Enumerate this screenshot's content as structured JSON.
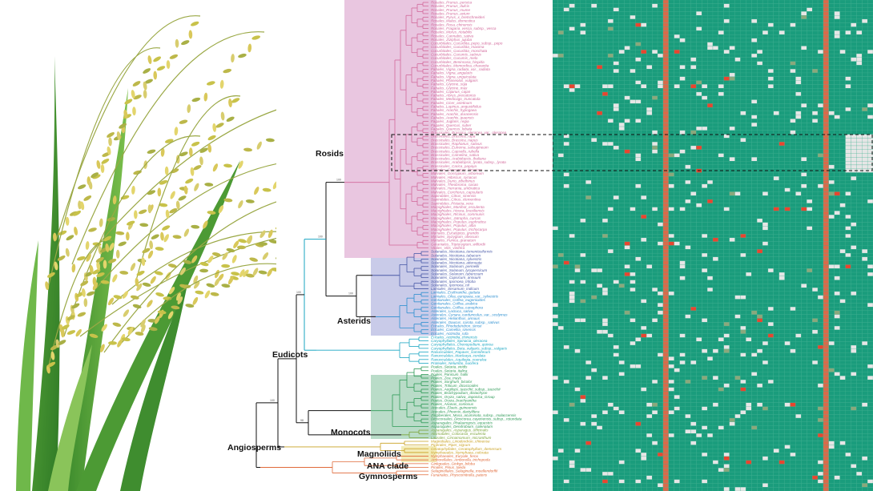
{
  "clades": {
    "rosids": "Rosids",
    "asterids": "Asterids",
    "eudicots": "Eudicots",
    "monocots": "Monocots",
    "magnoliids": "Magnoliids",
    "angiosperms": "Angiosperms",
    "ana": "ANA clade",
    "gymnosperms": "Gymnosperms"
  },
  "colors": {
    "rosid_tips": "#d2699b",
    "rosid_bg": "#e9c6e0",
    "asterid_bg": "#c9cbe9",
    "asterid_tips": "#4a5aa8",
    "lamiid_tips": "#2c8fd0",
    "eudicot_basal": "#1aa6c2",
    "monocot_bg": "#b9dcc8",
    "monocot_tips": "#2e9a57",
    "magnoliid_bg": "#f3ecb8",
    "magnoliid_tips": "#7ba43a",
    "ana_tips": "#c9a020",
    "gymno_tips": "#e06a3a",
    "heat_base": "#1a9c7c",
    "heat_absent": "#e6e6e6",
    "heat_high": "#d96a4a",
    "heat_alert": "#e8452f"
  },
  "bootstrap_values": [
    "100",
    "100",
    "100",
    "100",
    "100",
    "100",
    "98"
  ],
  "species": [
    "Rosales_Prunus_persica",
    "Rosales_Prunus_dulcis",
    "Rosales_Prunus_mume",
    "Rosales_Prunus_avium",
    "Rosales_Pyrus_x_bretschneideri",
    "Rosales_Malus_domestica",
    "Rosales_Rosa_chinensis",
    "Rosales_Fragaria_vesca_subsp._vesca",
    "Rosales_Morus_notabilis",
    "Rosales_Cannabis_sativa",
    "Rosales_Ziziphus_jujuba",
    "Cucurbitales_Cucurbita_pepo_subsp._pepo",
    "Cucurbitales_Cucurbita_maxima",
    "Cucurbitales_Cucurbita_moschata",
    "Cucurbitales_Cucumis_sativus",
    "Cucurbitales_Cucumis_melo",
    "Cucurbitales_Benincasa_hispida",
    "Cucurbitales_Momordica_charantia",
    "Fabales_Vigna_radiata_var._radiata",
    "Fabales_Vigna_angularis",
    "Fabales_Vigna_unguiculata",
    "Fabales_Phaseolus_vulgaris",
    "Fabales_Glycine_soja",
    "Fabales_Glycine_max",
    "Fabales_Cajanus_cajan",
    "Fabales_Abrus_precatorius",
    "Fabales_Medicago_truncatula",
    "Fabales_Cicer_arietinum",
    "Fabales_Lupinus_angustifolius",
    "Fabales_Arachis_hypogaea",
    "Fabales_Arachis_duranensis",
    "Fabales_Arachis_ipaensis",
    "Fagales_Juglans_regia",
    "Fagales_Quercus_suber",
    "Fagales_Quercus_lobata",
    "Brassicales_Brassica_oleracea_var._oleracea",
    "Brassicales_Brassica_rapa",
    "Brassicales_Brassica_napus",
    "Brassicales_Raphanus_sativus",
    "Brassicales_Eutrema_salsugineum",
    "Brassicales_Capsella_rubella",
    "Brassicales_Camelina_sativa",
    "Brassicales_Arabidopsis_thaliana",
    "Brassicales_Arabidopsis_lyrata_subsp._lyrata",
    "Brassicales_Carica_papaya",
    "Malvales_Gossypium_hirsutum",
    "Malvales_Gossypium_arboreum",
    "Malvales_Hibiscus_syriacus",
    "Malvales_Durio_zibethinus",
    "Malvales_Theobroma_cacao",
    "Malvales_Herrania_umbratica",
    "Malvales_Corchorus_capsularis",
    "Sapindales_Citrus_sinensis",
    "Sapindales_Citrus_clementina",
    "Sapindales_Pistacia_vera",
    "Malpighiales_Manihot_esculenta",
    "Malpighiales_Hevea_brasiliensis",
    "Malpighiales_Ricinus_communis",
    "Malpighiales_Jatropha_curcas",
    "Malpighiales_Populus_euphratica",
    "Malpighiales_Populus_alba",
    "Malpighiales_Populus_trichocarpa",
    "Myrtales_Eucalyptus_grandis",
    "Myrtales_Syzygium_oleosum",
    "Myrtales_Punica_granatum",
    "Geraniales_Tripterygium_wilfordii",
    "Vitales_Vitis_vinifera",
    "Solanales_Nicotiana_tomentosiformis",
    "Solanales_Nicotiana_tabacum",
    "Solanales_Nicotiana_sylvestris",
    "Solanales_Nicotiana_attenuata",
    "Solanales_Solanum_pennellii",
    "Solanales_Solanum_lycopersicum",
    "Solanales_Solanum_tuberosum",
    "Solanales_Capsicum_annuum",
    "Solanales_Ipomoea_triloba",
    "Solanales_Ipomoea_nil",
    "Lamiales_Sesamum_indicum",
    "Lamiales_Erythranthe_guttata",
    "Lamiales_Olea_europaea_var._sylvestris",
    "Gentianales_Coffea_eugenioides",
    "Gentianales_Coffea_arabica",
    "Gentianales_Coffea_canephora",
    "Asterales_Lactuca_sativa",
    "Asterales_Cynara_cardunculus_var._scolymus",
    "Asterales_Helianthus_annuus",
    "Asterales_Daucus_carota_subsp._sativus",
    "Ericales_Rhododendron_simsii",
    "Ericales_Camellia_sinensis",
    "Ericales_Actinidia_rufa",
    "Ericales_Actinidia_chinensis",
    "Caryophyllales_Spinacia_oleracea",
    "Caryophyllales_Chenopodium_quinoa",
    "Caryophyllales_Beta_vulgaris_subsp._vulgaris",
    "Ranunculales_Papaver_somniferum",
    "Ranunculales_Macleaya_cordata",
    "Ranunculales_Aquilegia_coerulea",
    "Proteales_Nelumbo_nucifera",
    "Poales_Setaria_viridis",
    "Poales_Setaria_italica",
    "Poales_Panicum_hallii",
    "Poales_Zea_mays",
    "Poales_Sorghum_bicolor",
    "Poales_Triticum_dicoccoides",
    "Poales_Aegilops_tauschii_subsp._tauschii",
    "Poales_Brachypodium_distachyon",
    "Poales_Oryza_sativa_Japonica_Group",
    "Poales_Oryza_brachyantha",
    "Poales_Ananas_comosus",
    "Arecales_Elaeis_guineensis",
    "Arecales_Phoenix_dactylifera",
    "Zingiberales_Musa_acuminata_subsp._malaccensis",
    "Dioscoreales_Dioscorea_cayenensis_subsp._rotundata",
    "Asparagales_Phalaenopsis_equestris",
    "Asparagales_Dendrobium_catenatum",
    "Asparagales_Asparagus_officinalis",
    "Alismatales_Colocasia_esculenta",
    "Laurales_Cinnamomum_micranthum",
    "Magnoliales_Liriodendron_chinense",
    "Piperales_Piper_nigrum",
    "Ceratophyllales_Ceratophyllum_demersum",
    "Nymphaeales_Nymphaea_colorata",
    "Nymphaeales_Euryale_ferox",
    "Amborellales_Amborella_trichopoda",
    "Ginkgoales_Ginkgo_biloba",
    "Pinales_Pinus_taeda",
    "Selaginellales_Selaginella_moellendorffii",
    "Funariales_Physcomitrella_patens"
  ]
}
